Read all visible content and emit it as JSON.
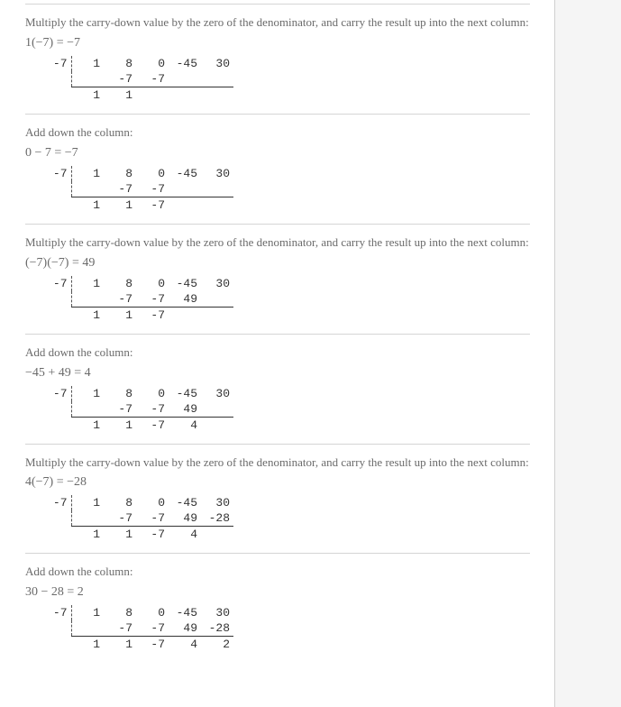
{
  "text": {
    "multiply_instr": "Multiply the carry-down value by the zero of the denominator, and carry the result up into the next column:",
    "add_instr": "Add down the column:"
  },
  "equations": {
    "s1": "1(−7) = −7",
    "s2": "0 − 7 = −7",
    "s3": "(−7)(−7) = 49",
    "s4": "−45 + 49 = 4",
    "s5": "4(−7) = −28",
    "s6": "30 − 28 = 2"
  },
  "divisor": "-7",
  "coeff": {
    "a": "1",
    "b": "8",
    "c": "0",
    "d": "-45",
    "e": "30"
  },
  "tables": {
    "t1": {
      "mid": [
        "",
        "-7",
        "-7",
        "",
        ""
      ],
      "bot": [
        "1",
        "1",
        "",
        "",
        ""
      ]
    },
    "t2": {
      "mid": [
        "",
        "-7",
        "-7",
        "",
        ""
      ],
      "bot": [
        "1",
        "1",
        "-7",
        "",
        ""
      ]
    },
    "t3": {
      "mid": [
        "",
        "-7",
        "-7",
        "49",
        ""
      ],
      "bot": [
        "1",
        "1",
        "-7",
        "",
        ""
      ]
    },
    "t4": {
      "mid": [
        "",
        "-7",
        "-7",
        "49",
        ""
      ],
      "bot": [
        "1",
        "1",
        "-7",
        "4",
        ""
      ]
    },
    "t5": {
      "mid": [
        "",
        "-7",
        "-7",
        "49",
        "-28"
      ],
      "bot": [
        "1",
        "1",
        "-7",
        "4",
        ""
      ]
    },
    "t6": {
      "mid": [
        "",
        "-7",
        "-7",
        "49",
        "-28"
      ],
      "bot": [
        "1",
        "1",
        "-7",
        "4",
        "2"
      ]
    }
  },
  "colors": {
    "text_muted": "#6a6a6a",
    "mono_text": "#333333",
    "separator": "#d5d5d5",
    "right_bg": "#f5f5f5",
    "right_border": "#d0d0d0"
  }
}
